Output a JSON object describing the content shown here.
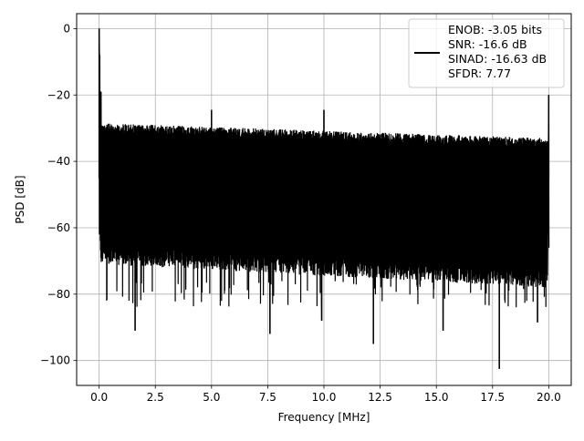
{
  "chart_data": {
    "type": "line",
    "title": "",
    "xlabel": "Frequency [MHz]",
    "ylabel": "PSD [dB]",
    "xlim": [
      -1.0,
      21.0
    ],
    "ylim": [
      -107.5,
      4.5
    ],
    "xticks": [
      0.0,
      2.5,
      5.0,
      7.5,
      10.0,
      12.5,
      15.0,
      17.5,
      20.0
    ],
    "xtick_labels": [
      "0.0",
      "2.5",
      "5.0",
      "7.5",
      "10.0",
      "12.5",
      "15.0",
      "17.5",
      "20.0"
    ],
    "yticks": [
      0,
      -20,
      -40,
      -60,
      -80,
      -100
    ],
    "ytick_labels": [
      "0",
      "−20",
      "−40",
      "−60",
      "−80",
      "−100"
    ],
    "grid": true,
    "legend_position": "top-right",
    "series_color": "#000000",
    "legend_entries": [
      "ENOB: -3.05 bits",
      "SNR: -16.6 dB",
      "SINAD: -16.63 dB",
      "SFDR: 7.77"
    ],
    "noise_band": {
      "upper_start": -28.5,
      "upper_end": -33.0,
      "lower_start": -65.0,
      "lower_end": -72.0,
      "deep_dips_typical": -80
    },
    "peaks": [
      {
        "x": 0.0,
        "y": 0.0
      },
      {
        "x": 0.08,
        "y": -19.0
      },
      {
        "x": 5.0,
        "y": -24.5
      },
      {
        "x": 10.0,
        "y": -24.5
      },
      {
        "x": 20.0,
        "y": -20.0
      }
    ],
    "dips": [
      {
        "x": 1.6,
        "y": -91.0
      },
      {
        "x": 7.6,
        "y": -92.0
      },
      {
        "x": 12.2,
        "y": -95.0
      },
      {
        "x": 15.3,
        "y": -91.0
      },
      {
        "x": 17.8,
        "y": -102.5
      },
      {
        "x": 19.5,
        "y": -88.5
      },
      {
        "x": 9.9,
        "y": -88.0
      }
    ]
  }
}
